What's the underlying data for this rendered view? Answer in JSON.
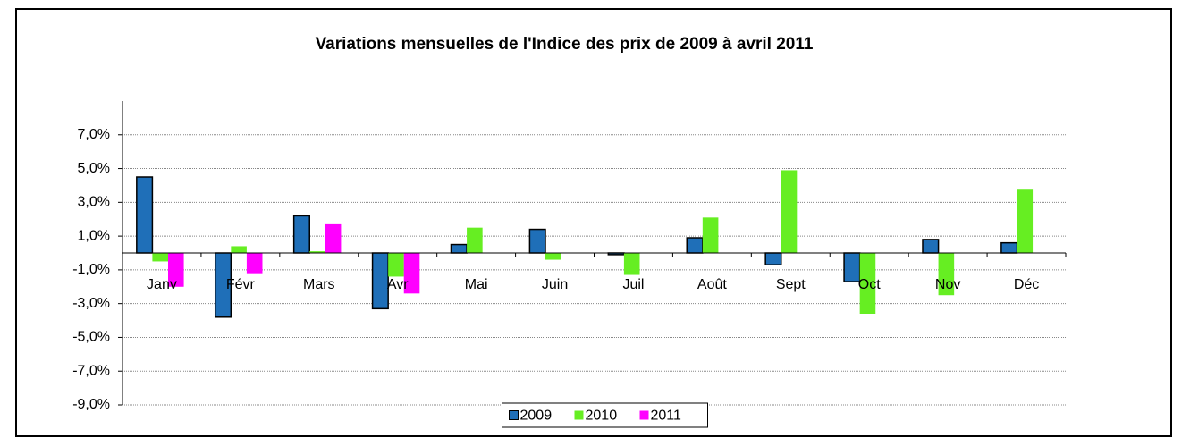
{
  "chart_data": {
    "type": "bar",
    "title": "Variations mensuelles de l'Indice des prix de 2009 à  avril 2011",
    "categories": [
      "Janv",
      "Févr",
      "Mars",
      "Avr",
      "Mai",
      "Juin",
      "Juil",
      "Août",
      "Sept",
      "Oct",
      "Nov",
      "Déc"
    ],
    "series": [
      {
        "name": "2009",
        "color": "#1f6fb8",
        "values": [
          4.5,
          -3.8,
          2.2,
          -3.3,
          0.5,
          1.4,
          -0.1,
          0.9,
          -0.7,
          -1.7,
          0.8,
          0.6
        ]
      },
      {
        "name": "2010",
        "color": "#66ee22",
        "values": [
          -0.5,
          0.4,
          0.1,
          -1.4,
          1.5,
          -0.4,
          -1.3,
          2.1,
          4.9,
          -3.6,
          -2.5,
          3.8
        ]
      },
      {
        "name": "2011",
        "color": "#ff00ff",
        "values": [
          -2.0,
          -1.2,
          1.7,
          -2.4,
          null,
          null,
          null,
          null,
          null,
          null,
          null,
          null
        ]
      }
    ],
    "ylim": [
      -9,
      9
    ],
    "yticks": [
      {
        "value": -9,
        "label": "-9,0%"
      },
      {
        "value": -7,
        "label": "-7,0%"
      },
      {
        "value": -5,
        "label": "-5,0%"
      },
      {
        "value": -3,
        "label": "-3,0%"
      },
      {
        "value": -1,
        "label": "-1,0%"
      },
      {
        "value": 1,
        "label": "1,0%"
      },
      {
        "value": 3,
        "label": "3,0%"
      },
      {
        "value": 5,
        "label": "5,0%"
      },
      {
        "value": 7,
        "label": "7,0%"
      }
    ],
    "grid": true,
    "legend": "bottom"
  }
}
